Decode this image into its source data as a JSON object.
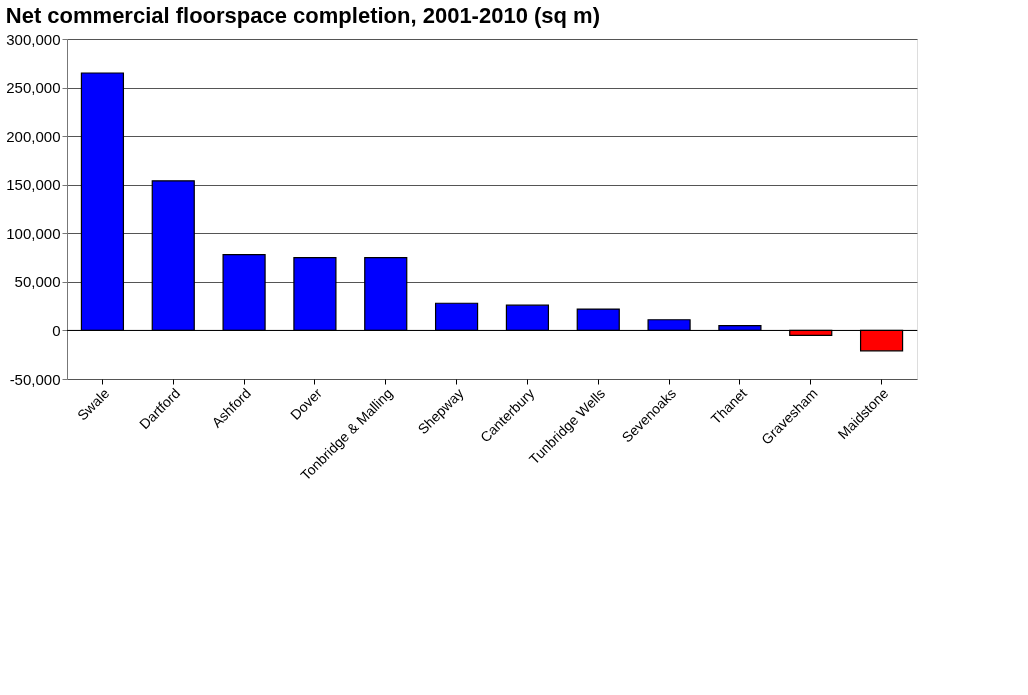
{
  "chart_data": {
    "type": "bar",
    "title": "Net commercial floorspace completion, 2001-2010 (sq m)",
    "categories": [
      "Swale",
      "Dartford",
      "Ashford",
      "Dover",
      "Tonbridge & Malling",
      "Shepway",
      "Canterbury",
      "Tunbridge Wells",
      "Sevenoaks",
      "Thanet",
      "Gravesham",
      "Maidstone"
    ],
    "values": [
      265000,
      154000,
      78000,
      75000,
      75000,
      28000,
      26000,
      22000,
      11000,
      5000,
      -5000,
      -21000
    ],
    "colors": [
      "#0000ff",
      "#0000ff",
      "#0000ff",
      "#0000ff",
      "#0000ff",
      "#0000ff",
      "#0000ff",
      "#0000ff",
      "#0000ff",
      "#0000ff",
      "#ff0000",
      "#ff0000"
    ],
    "ylim": [
      -50000,
      300000
    ],
    "yticks": [
      {
        "value": -50000,
        "label": "-50,000"
      },
      0,
      {
        "value": 50000,
        "label": "50,000"
      },
      {
        "value": 100000,
        "label": "100,000"
      },
      {
        "value": 150000,
        "label": "150,000"
      },
      {
        "value": 200000,
        "label": "200,000"
      },
      {
        "value": 250000,
        "label": "250,000"
      },
      {
        "value": 300000,
        "label": "300,000"
      }
    ],
    "grid": "y"
  }
}
